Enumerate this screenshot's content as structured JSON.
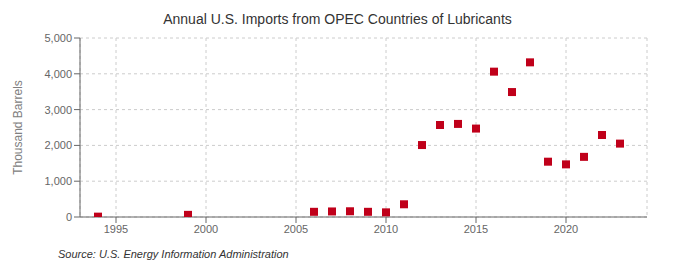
{
  "chart_data": {
    "type": "scatter",
    "title": "Annual U.S. Imports from OPEC Countries of Lubricants",
    "y_label": "Thousand Barrels",
    "annotation": "Source: U.S. Energy Information Administration",
    "x": [
      1994,
      1999,
      2006,
      2007,
      2008,
      2009,
      2010,
      2011,
      2012,
      2013,
      2014,
      2015,
      2016,
      2017,
      2018,
      2019,
      2020,
      2021,
      2022,
      2023
    ],
    "values": [
      10,
      60,
      145,
      155,
      160,
      145,
      130,
      355,
      2010,
      2570,
      2600,
      2470,
      4060,
      3490,
      4320,
      1545,
      1470,
      1680,
      2290,
      2050
    ],
    "color": "#c0001a",
    "marker": "square",
    "xlim": [
      1993,
      2024.5
    ],
    "xticks": [
      1995,
      2000,
      2005,
      2010,
      2015,
      2020
    ],
    "ylim": [
      0,
      5000
    ],
    "yticks": [
      0,
      {
        "value": 1000,
        "label": "1,000"
      },
      {
        "value": 2000,
        "label": "2,000"
      },
      {
        "value": 3000,
        "label": "3,000"
      },
      {
        "value": 4000,
        "label": "4,000"
      },
      {
        "value": 5000,
        "label": "5,000"
      }
    ],
    "grid": true
  }
}
